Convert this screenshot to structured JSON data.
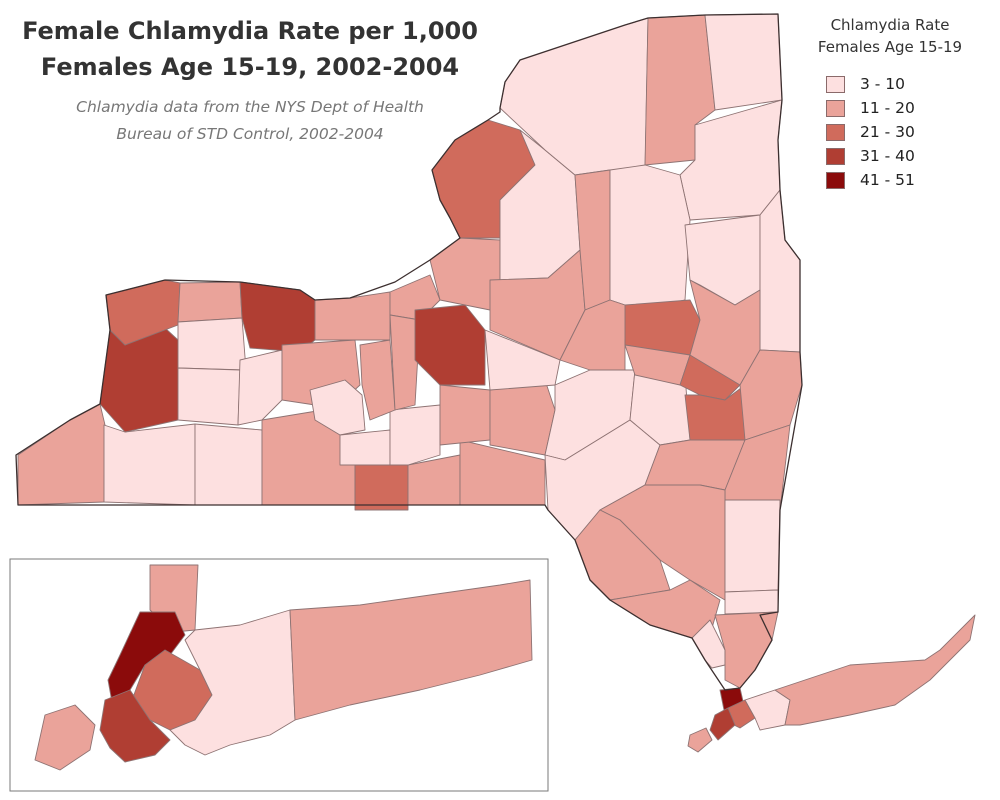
{
  "map": {
    "title_lines": [
      "Female Chlamydia Rate per 1,000",
      "Females Age 15-19, 2002-2004"
    ],
    "subtitle_lines": [
      "Chlamydia data from the NYS Dept of Health",
      "Bureau of STD Control, 2002-2004"
    ],
    "inset": "New York City / Long Island enlargement"
  },
  "legend": {
    "title_lines": [
      "Chlamydia Rate",
      "Females Age 15-19"
    ],
    "items": [
      {
        "label": "3 - 10",
        "color": "#fde0e0"
      },
      {
        "label": "11 - 20",
        "color": "#eaa39a"
      },
      {
        "label": "21 - 30",
        "color": "#d06b5c"
      },
      {
        "label": "31 - 40",
        "color": "#b03e33"
      },
      {
        "label": "41 - 51",
        "color": "#8b0b0b"
      }
    ]
  },
  "colors": {
    "c1": "#fde0e0",
    "c2": "#eaa39a",
    "c3": "#d06b5c",
    "c4": "#b03e33",
    "c5": "#8b0b0b",
    "state_outline": "#3c2f2f",
    "county_border": "#8e7373"
  }
}
